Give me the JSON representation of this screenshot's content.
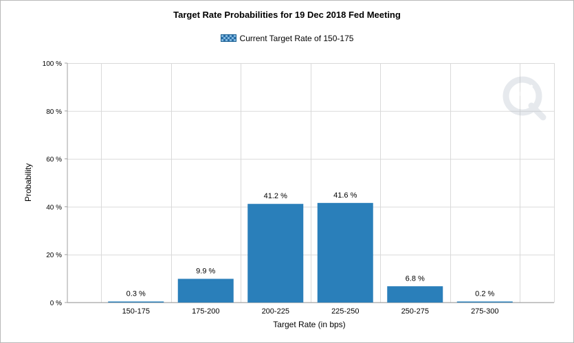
{
  "chart_data": {
    "type": "bar",
    "title": "Target Rate Probabilities for 19 Dec 2018 Fed Meeting",
    "legend": {
      "placement": "top-center",
      "entries": [
        {
          "name": "Current Target Rate of 150-175"
        }
      ]
    },
    "xlabel": "Target Rate (in bps)",
    "ylabel": "Probability",
    "categories": [
      "150-175",
      "175-200",
      "200-225",
      "225-250",
      "250-275",
      "275-300"
    ],
    "values": [
      0.3,
      9.9,
      41.2,
      41.6,
      6.8,
      0.2
    ],
    "data_labels": [
      "0.3 %",
      "9.9 %",
      "41.2 %",
      "41.6 %",
      "6.8 %",
      "0.2 %"
    ],
    "ylim": [
      0,
      100
    ],
    "yticks": [
      0,
      20,
      40,
      60,
      80,
      100
    ],
    "ytick_labels": [
      "0 %",
      "20 %",
      "40 %",
      "60 %",
      "80 %",
      "100 %"
    ],
    "grid": true,
    "colors": {
      "bar": "#2a7fba",
      "grid": "#d9d9d9",
      "axis": "#a0a0a0"
    },
    "watermark_icon": "q-logo-icon"
  }
}
